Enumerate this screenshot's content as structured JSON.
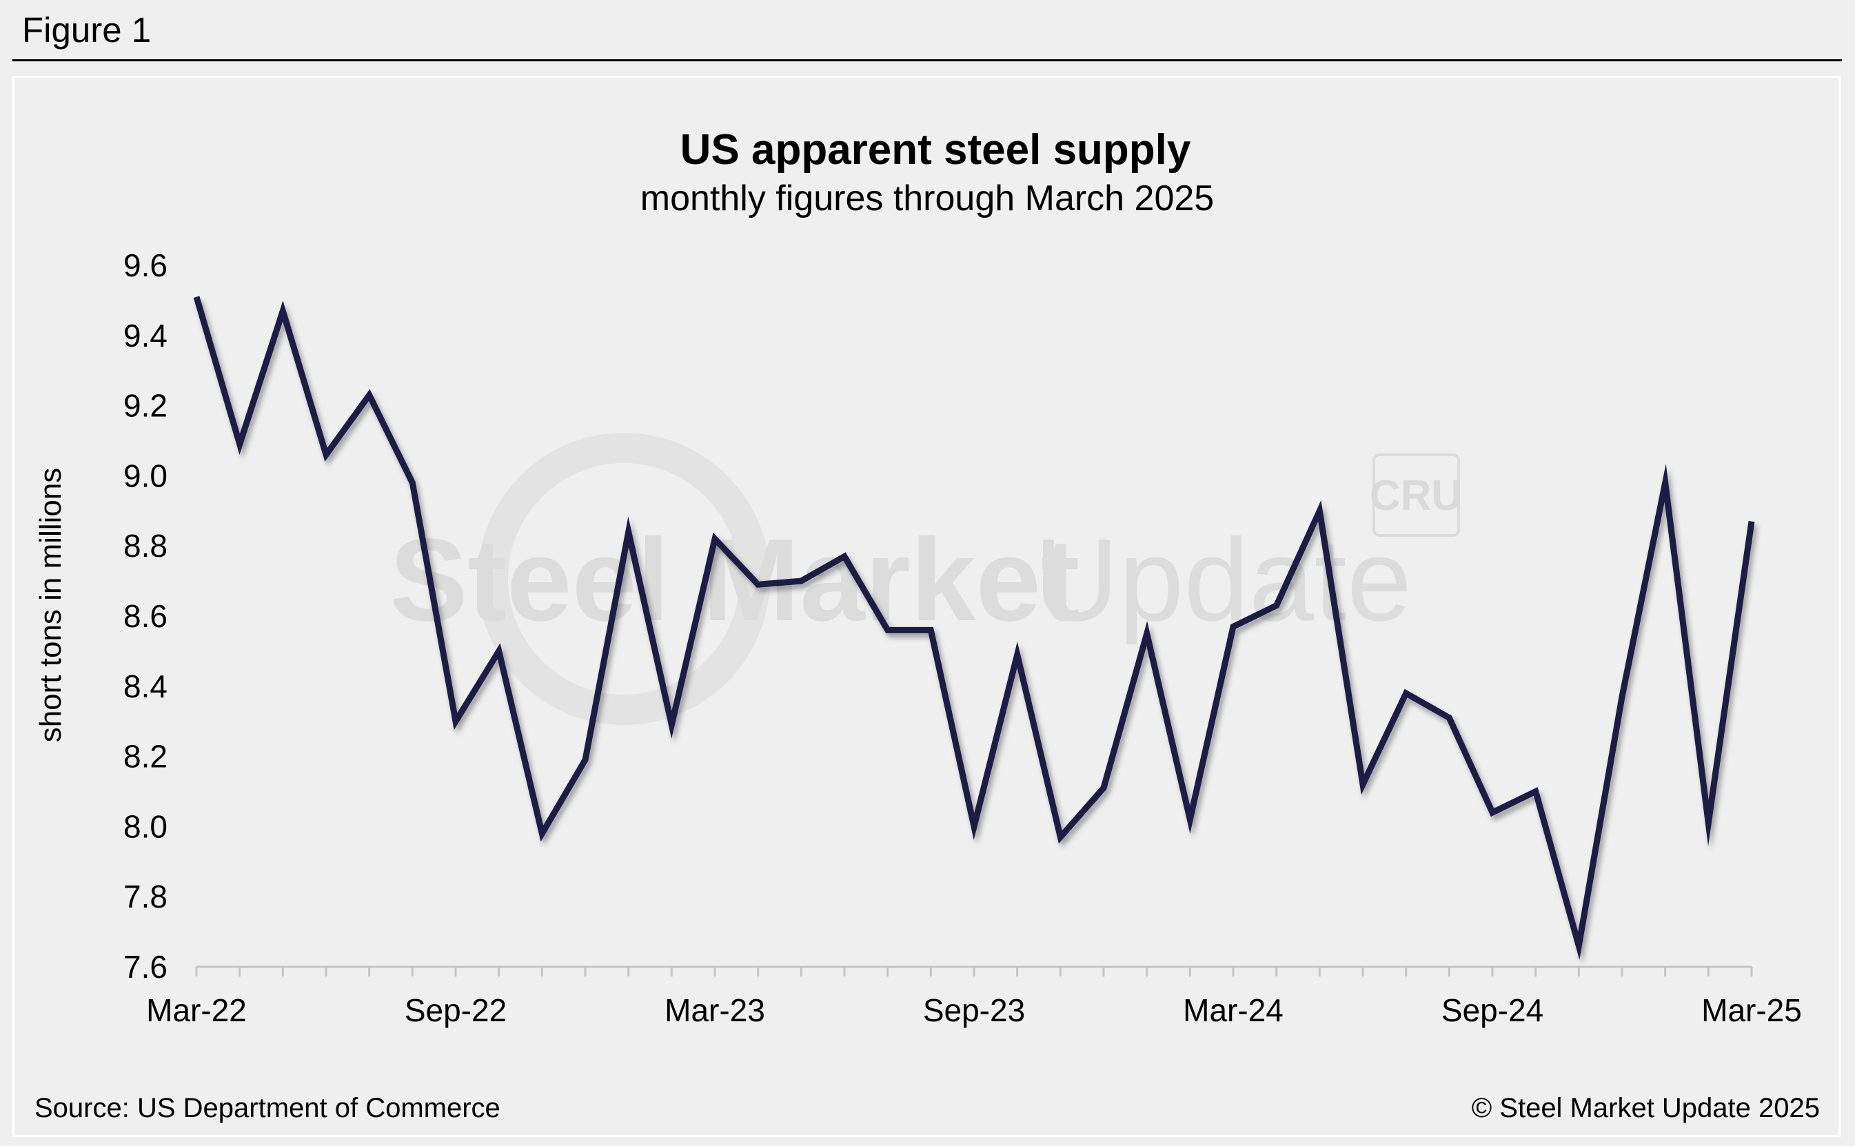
{
  "figure_label": "Figure 1",
  "source_note": "Source: US Department of Commerce",
  "copyright_note": "© Steel Market Update 2025",
  "watermark": {
    "text_bold": "Steel Market",
    "text_light": "Update",
    "badge": "CRU"
  },
  "colors": {
    "line": "#1b1f45",
    "background": "#efefef",
    "axis": "#c4c4c4",
    "watermark": "#dcdcdc"
  },
  "chart_data": {
    "type": "line",
    "title": "US apparent steel supply",
    "subtitle": "monthly figures through March 2025",
    "xlabel": "",
    "ylabel": "short tons in millions",
    "ylim": [
      7.6,
      9.6
    ],
    "yticks": [
      9.6,
      9.4,
      9.2,
      9.0,
      8.8,
      8.6,
      8.4,
      8.2,
      8.0,
      7.8,
      7.6
    ],
    "ytick_labels": [
      "9.6",
      "9.4",
      "9.2",
      "9.0",
      "8.8",
      "8.6",
      "8.4",
      "8.2",
      "8.0",
      "7.8",
      "7.6"
    ],
    "x": [
      "Mar-22",
      "Apr-22",
      "May-22",
      "Jun-22",
      "Jul-22",
      "Aug-22",
      "Sep-22",
      "Oct-22",
      "Nov-22",
      "Dec-22",
      "Jan-23",
      "Feb-23",
      "Mar-23",
      "Apr-23",
      "May-23",
      "Jun-23",
      "Jul-23",
      "Aug-23",
      "Sep-23",
      "Oct-23",
      "Nov-23",
      "Dec-23",
      "Jan-24",
      "Feb-24",
      "Mar-24",
      "Apr-24",
      "May-24",
      "Jun-24",
      "Jul-24",
      "Aug-24",
      "Sep-24",
      "Oct-24",
      "Nov-24",
      "Dec-24",
      "Jan-25",
      "Feb-25",
      "Mar-25"
    ],
    "xtick_labels": [
      "Mar-22",
      "Sep-22",
      "Mar-23",
      "Sep-23",
      "Mar-24",
      "Sep-24",
      "Mar-25"
    ],
    "grid": false,
    "legend": "none",
    "series": [
      {
        "values": [
          9.51,
          9.09,
          9.47,
          9.06,
          9.23,
          8.98,
          8.3,
          8.5,
          7.98,
          8.19,
          8.84,
          8.29,
          8.82,
          8.69,
          8.7,
          8.77,
          8.56,
          8.56,
          8.0,
          8.49,
          7.97,
          8.11,
          8.55,
          8.02,
          8.57,
          8.63,
          8.9,
          8.12,
          8.38,
          8.31,
          8.04,
          8.1,
          7.66,
          8.37,
          8.98,
          8.01,
          8.87
        ]
      }
    ]
  }
}
